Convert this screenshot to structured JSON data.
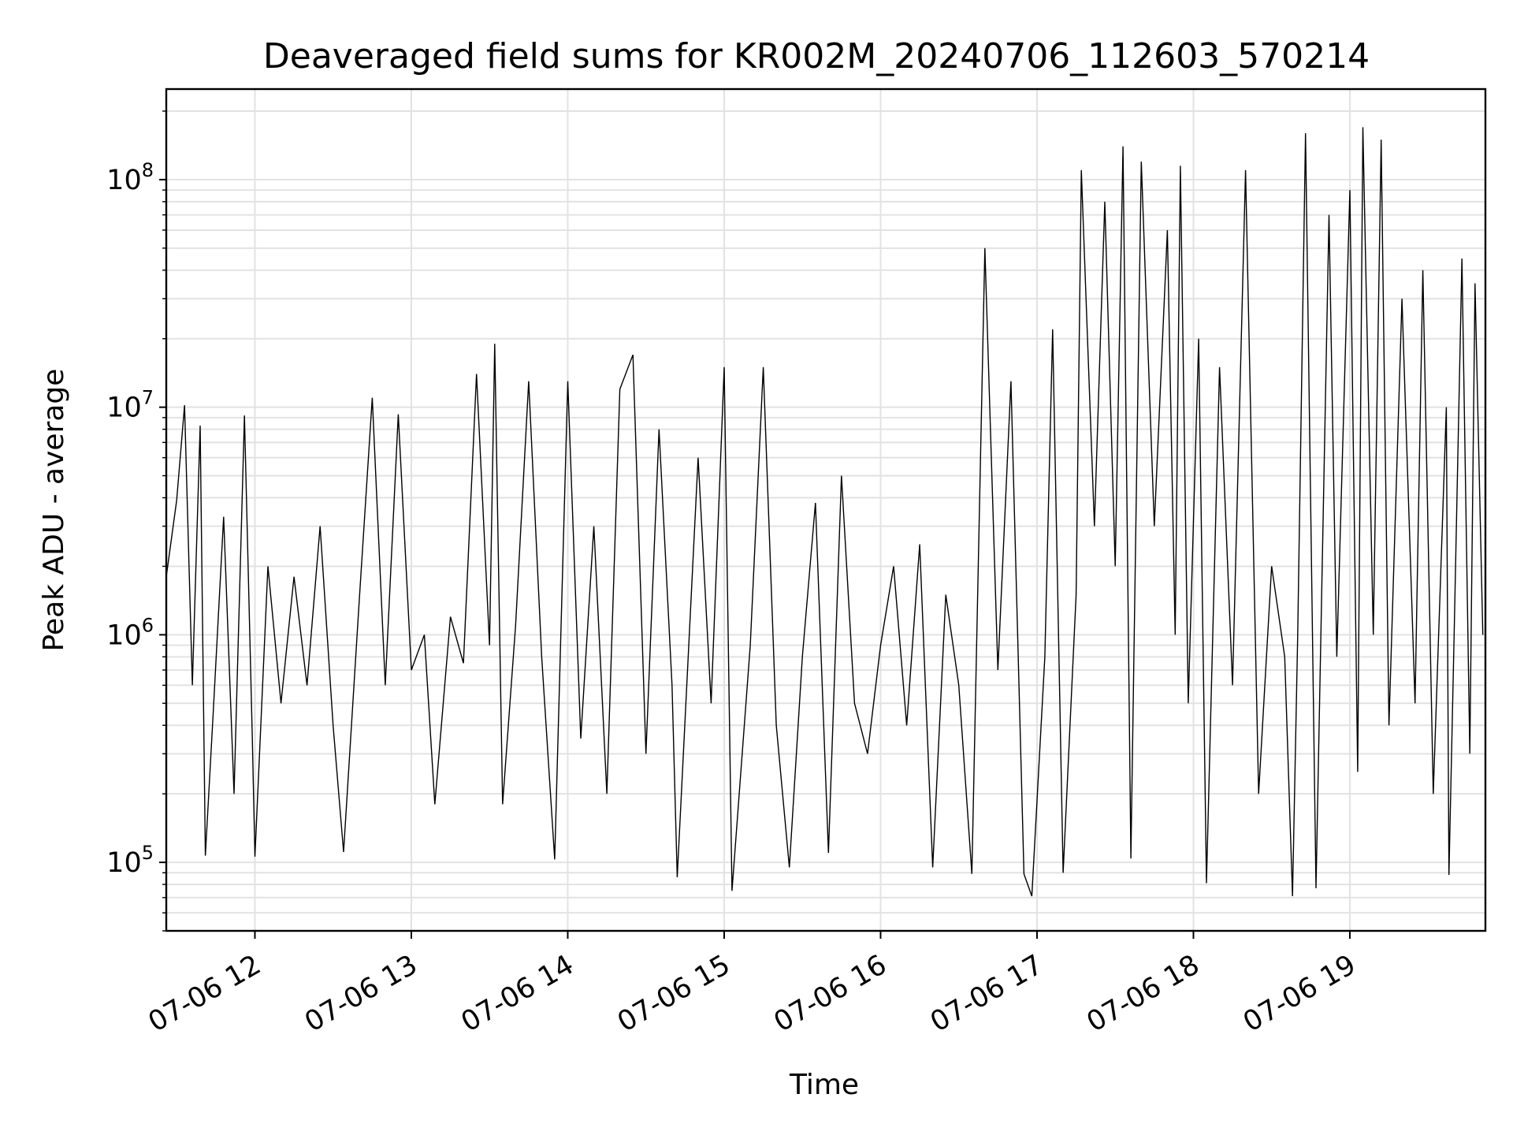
{
  "chart_data": {
    "type": "line",
    "title": "Deaveraged field sums for KR002M_20240706_112603_570214",
    "xlabel": "Time",
    "ylabel": "Peak ADU - average",
    "xscale": "time",
    "yscale": "log",
    "xlim": [
      "2024-07-06T11:26",
      "2024-07-06T19:52"
    ],
    "ylim": [
      50000,
      250000000
    ],
    "grid": true,
    "line_color": "#000000",
    "x_ticks": [
      {
        "t": "2024-07-06T12:00",
        "label": "07-06 12"
      },
      {
        "t": "2024-07-06T13:00",
        "label": "07-06 13"
      },
      {
        "t": "2024-07-06T14:00",
        "label": "07-06 14"
      },
      {
        "t": "2024-07-06T15:00",
        "label": "07-06 15"
      },
      {
        "t": "2024-07-06T16:00",
        "label": "07-06 16"
      },
      {
        "t": "2024-07-06T17:00",
        "label": "07-06 17"
      },
      {
        "t": "2024-07-06T18:00",
        "label": "07-06 18"
      },
      {
        "t": "2024-07-06T19:00",
        "label": "07-06 19"
      }
    ],
    "y_ticks": [
      {
        "value": 100000,
        "base": "10",
        "exp": "5"
      },
      {
        "value": 1000000,
        "base": "10",
        "exp": "6"
      },
      {
        "value": 10000000,
        "base": "10",
        "exp": "7"
      },
      {
        "value": 100000000,
        "base": "10",
        "exp": "8"
      }
    ],
    "series": [
      {
        "points": [
          [
            "2024-07-06T11:26",
            1800000
          ],
          [
            "2024-07-06T11:30",
            3900000
          ],
          [
            "2024-07-06T11:33",
            10200000
          ],
          [
            "2024-07-06T11:36",
            600000
          ],
          [
            "2024-07-06T11:39",
            8300000
          ],
          [
            "2024-07-06T11:41",
            107000
          ],
          [
            "2024-07-06T11:44",
            450000
          ],
          [
            "2024-07-06T11:48",
            3300000
          ],
          [
            "2024-07-06T11:52",
            200000
          ],
          [
            "2024-07-06T11:56",
            9200000
          ],
          [
            "2024-07-06T11:59",
            350000
          ],
          [
            "2024-07-06T12:00",
            106000
          ],
          [
            "2024-07-06T12:05",
            2000000
          ],
          [
            "2024-07-06T12:10",
            500000
          ],
          [
            "2024-07-06T12:15",
            1800000
          ],
          [
            "2024-07-06T12:20",
            600000
          ],
          [
            "2024-07-06T12:25",
            3000000
          ],
          [
            "2024-07-06T12:30",
            400000
          ],
          [
            "2024-07-06T12:34",
            111000
          ],
          [
            "2024-07-06T12:40",
            1400000
          ],
          [
            "2024-07-06T12:45",
            11000000
          ],
          [
            "2024-07-06T12:50",
            600000
          ],
          [
            "2024-07-06T12:55",
            9300000
          ],
          [
            "2024-07-06T13:00",
            700000
          ],
          [
            "2024-07-06T13:05",
            1000000
          ],
          [
            "2024-07-06T13:09",
            180000
          ],
          [
            "2024-07-06T13:15",
            1200000
          ],
          [
            "2024-07-06T13:20",
            750000
          ],
          [
            "2024-07-06T13:25",
            14000000
          ],
          [
            "2024-07-06T13:30",
            900000
          ],
          [
            "2024-07-06T13:32",
            19000000
          ],
          [
            "2024-07-06T13:35",
            180000
          ],
          [
            "2024-07-06T13:40",
            1100000
          ],
          [
            "2024-07-06T13:45",
            13000000
          ],
          [
            "2024-07-06T13:50",
            800000
          ],
          [
            "2024-07-06T13:55",
            103000
          ],
          [
            "2024-07-06T14:00",
            13000000
          ],
          [
            "2024-07-06T14:05",
            350000
          ],
          [
            "2024-07-06T14:10",
            3000000
          ],
          [
            "2024-07-06T14:15",
            200000
          ],
          [
            "2024-07-06T14:20",
            12000000
          ],
          [
            "2024-07-06T14:25",
            17000000
          ],
          [
            "2024-07-06T14:30",
            300000
          ],
          [
            "2024-07-06T14:35",
            8000000
          ],
          [
            "2024-07-06T14:40",
            600000
          ],
          [
            "2024-07-06T14:42",
            86000
          ],
          [
            "2024-07-06T14:50",
            6000000
          ],
          [
            "2024-07-06T14:55",
            500000
          ],
          [
            "2024-07-06T15:00",
            15000000
          ],
          [
            "2024-07-06T15:03",
            75000
          ],
          [
            "2024-07-06T15:10",
            900000
          ],
          [
            "2024-07-06T15:15",
            15000000
          ],
          [
            "2024-07-06T15:20",
            400000
          ],
          [
            "2024-07-06T15:25",
            95000
          ],
          [
            "2024-07-06T15:30",
            800000
          ],
          [
            "2024-07-06T15:35",
            3800000
          ],
          [
            "2024-07-06T15:40",
            110000
          ],
          [
            "2024-07-06T15:45",
            5000000
          ],
          [
            "2024-07-06T15:50",
            500000
          ],
          [
            "2024-07-06T15:55",
            300000
          ],
          [
            "2024-07-06T16:00",
            900000
          ],
          [
            "2024-07-06T16:05",
            2000000
          ],
          [
            "2024-07-06T16:10",
            400000
          ],
          [
            "2024-07-06T16:15",
            2500000
          ],
          [
            "2024-07-06T16:20",
            95000
          ],
          [
            "2024-07-06T16:25",
            1500000
          ],
          [
            "2024-07-06T16:30",
            600000
          ],
          [
            "2024-07-06T16:35",
            89000
          ],
          [
            "2024-07-06T16:40",
            50000000
          ],
          [
            "2024-07-06T16:45",
            700000
          ],
          [
            "2024-07-06T16:50",
            13000000
          ],
          [
            "2024-07-06T16:55",
            89000
          ],
          [
            "2024-07-06T16:58",
            71000
          ],
          [
            "2024-07-06T17:03",
            800000
          ],
          [
            "2024-07-06T17:06",
            22000000
          ],
          [
            "2024-07-06T17:10",
            90000
          ],
          [
            "2024-07-06T17:15",
            1500000
          ],
          [
            "2024-07-06T17:17",
            110000000
          ],
          [
            "2024-07-06T17:22",
            3000000
          ],
          [
            "2024-07-06T17:26",
            80000000
          ],
          [
            "2024-07-06T17:30",
            2000000
          ],
          [
            "2024-07-06T17:33",
            140000000
          ],
          [
            "2024-07-06T17:36",
            104000
          ],
          [
            "2024-07-06T17:40",
            120000000
          ],
          [
            "2024-07-06T17:45",
            3000000
          ],
          [
            "2024-07-06T17:50",
            60000000
          ],
          [
            "2024-07-06T17:53",
            1000000
          ],
          [
            "2024-07-06T17:55",
            115000000
          ],
          [
            "2024-07-06T17:58",
            500000
          ],
          [
            "2024-07-06T18:02",
            20000000
          ],
          [
            "2024-07-06T18:05",
            81000
          ],
          [
            "2024-07-06T18:10",
            15000000
          ],
          [
            "2024-07-06T18:15",
            600000
          ],
          [
            "2024-07-06T18:20",
            110000000
          ],
          [
            "2024-07-06T18:25",
            200000
          ],
          [
            "2024-07-06T18:30",
            2000000
          ],
          [
            "2024-07-06T18:35",
            800000
          ],
          [
            "2024-07-06T18:38",
            71000
          ],
          [
            "2024-07-06T18:40",
            1000000
          ],
          [
            "2024-07-06T18:43",
            160000000
          ],
          [
            "2024-07-06T18:47",
            77000
          ],
          [
            "2024-07-06T18:52",
            70000000
          ],
          [
            "2024-07-06T18:55",
            800000
          ],
          [
            "2024-07-06T19:00",
            90000000
          ],
          [
            "2024-07-06T19:03",
            250000
          ],
          [
            "2024-07-06T19:05",
            170000000
          ],
          [
            "2024-07-06T19:09",
            1000000
          ],
          [
            "2024-07-06T19:12",
            150000000
          ],
          [
            "2024-07-06T19:15",
            400000
          ],
          [
            "2024-07-06T19:20",
            30000000
          ],
          [
            "2024-07-06T19:25",
            500000
          ],
          [
            "2024-07-06T19:28",
            40000000
          ],
          [
            "2024-07-06T19:32",
            200000
          ],
          [
            "2024-07-06T19:37",
            10000000
          ],
          [
            "2024-07-06T19:38",
            88000
          ],
          [
            "2024-07-06T19:40",
            1000000
          ],
          [
            "2024-07-06T19:43",
            45000000
          ],
          [
            "2024-07-06T19:46",
            300000
          ],
          [
            "2024-07-06T19:48",
            35000000
          ],
          [
            "2024-07-06T19:51",
            1000000
          ]
        ]
      }
    ]
  }
}
